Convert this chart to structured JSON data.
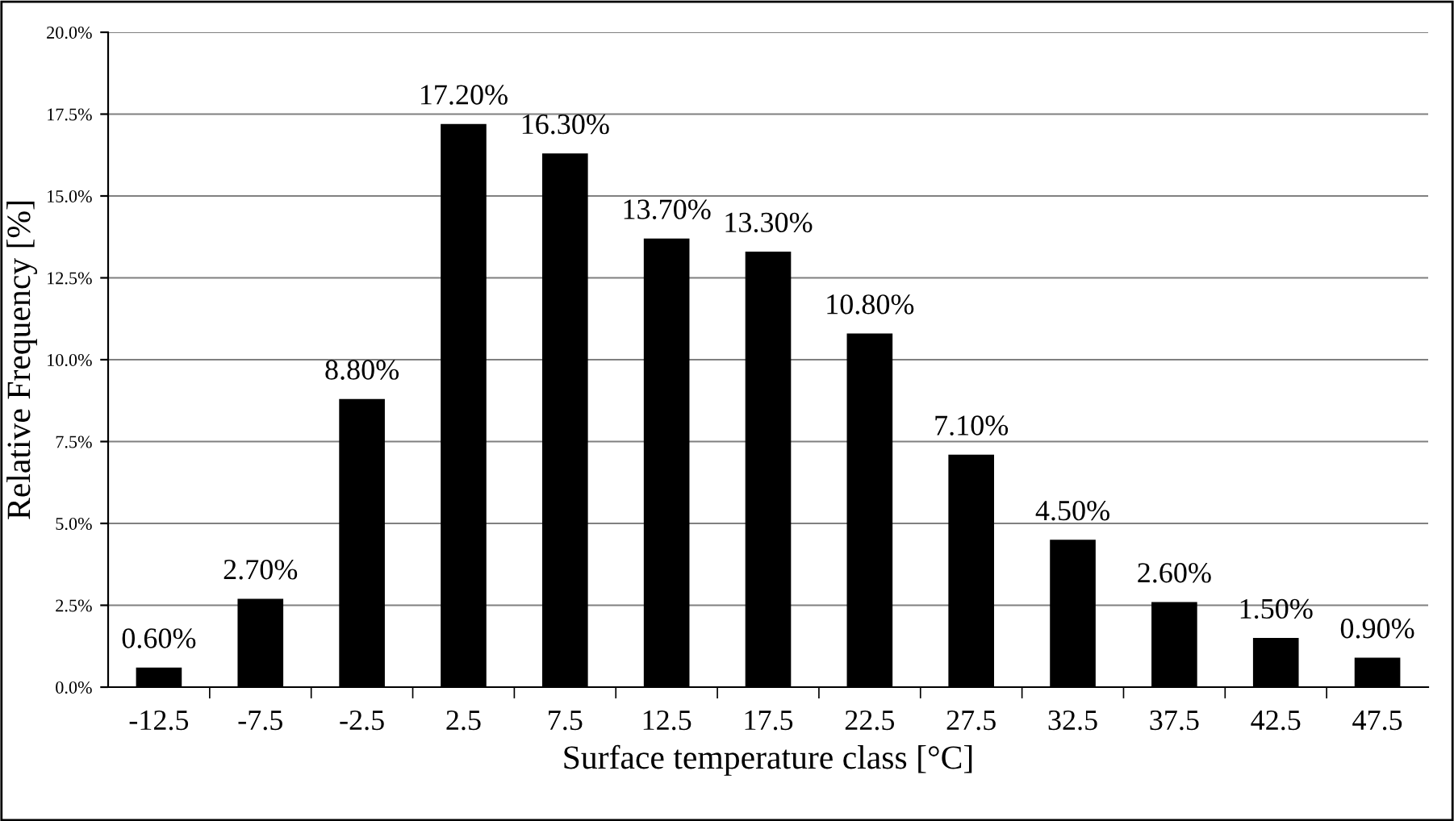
{
  "chart_data": {
    "type": "bar",
    "xlabel": "Surface temperature class [°C]",
    "ylabel": "Relative Frequency [%]",
    "categories": [
      "-12.5",
      "-7.5",
      "-2.5",
      "2.5",
      "7.5",
      "12.5",
      "17.5",
      "22.5",
      "27.5",
      "32.5",
      "37.5",
      "42.5",
      "47.5"
    ],
    "values": [
      0.6,
      2.7,
      8.8,
      17.2,
      16.3,
      13.7,
      13.3,
      10.8,
      7.1,
      4.5,
      2.6,
      1.5,
      0.9
    ],
    "value_labels": [
      "0.60%",
      "2.70%",
      "8.80%",
      "17.20%",
      "16.30%",
      "13.70%",
      "13.30%",
      "10.80%",
      "7.10%",
      "4.50%",
      "2.60%",
      "1.50%",
      "0.90%"
    ],
    "color": "#000000",
    "ylim": [
      0,
      20
    ],
    "yticks": [
      {
        "value": 0,
        "label": "0.0%"
      },
      {
        "value": 2.5,
        "label": "2.5%"
      },
      {
        "value": 5,
        "label": "5.0%"
      },
      {
        "value": 7.5,
        "label": "7.5%"
      },
      {
        "value": 10,
        "label": "10.0%"
      },
      {
        "value": 12.5,
        "label": "12.5%"
      },
      {
        "value": 15,
        "label": "15.0%"
      },
      {
        "value": 17.5,
        "label": "17.5%"
      },
      {
        "value": 20,
        "label": "20.0%"
      }
    ],
    "grid": "y",
    "legend": false
  }
}
